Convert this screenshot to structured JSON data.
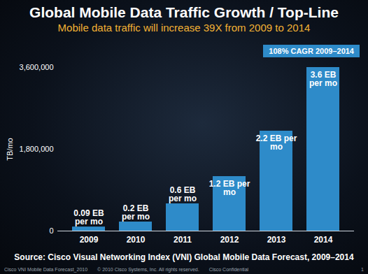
{
  "chart_data": {
    "type": "bar",
    "title": "Global Mobile Data Traffic Growth / Top-Line",
    "subtitle": "Mobile data traffic will increase 39X from 2009 to 2014",
    "y_label": "TB/mo",
    "categories": [
      "2009",
      "2010",
      "2011",
      "2012",
      "2013",
      "2014"
    ],
    "values": [
      90000,
      200000,
      600000,
      1200000,
      2200000,
      3600000
    ],
    "value_labels": [
      "0.09 EB per mo",
      "0.2 EB per mo",
      "0.6 EB per mo",
      "1.2 EB per mo",
      "2.2 EB per mo",
      "3.6 EB per mo"
    ],
    "data_labels": true,
    "color": "#2e8bc9",
    "ylim": [
      0,
      3600000
    ],
    "yticks": [
      0,
      {
        "value": 1800000,
        "label": "1,800,000"
      },
      {
        "value": 3600000,
        "label": "3,600,000"
      }
    ],
    "grid": false,
    "annotations": [
      "108% CAGR 2009–2014"
    ],
    "source": "Source: Cisco Visual Networking Index (VNI) Global Mobile Data Forecast, 2009–2014",
    "footer": [
      "Cisco VNI Mobile Data Forecast_2010",
      "© 2010 Cisco Systems, Inc. All rights reserved.",
      "Cisco Confidential",
      "1"
    ]
  }
}
